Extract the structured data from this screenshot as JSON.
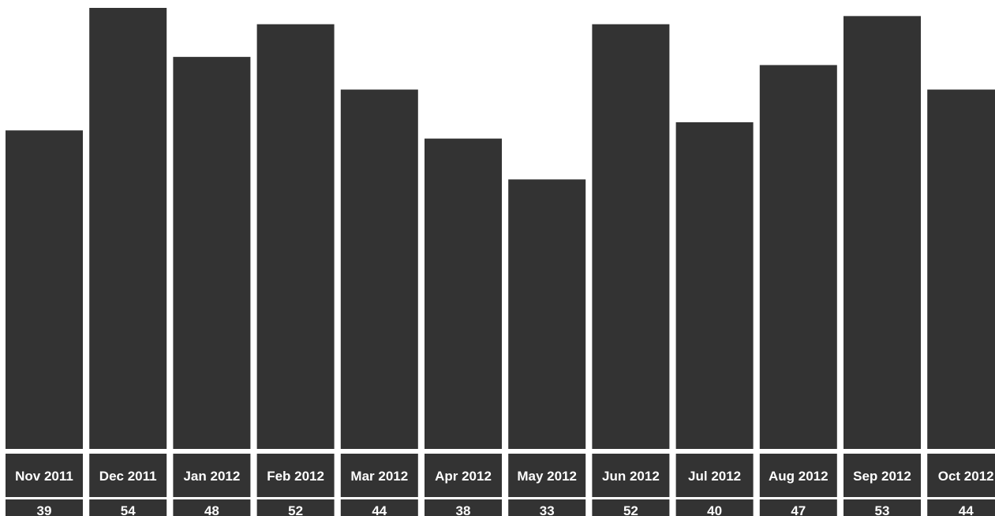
{
  "chart_data": {
    "type": "bar",
    "title": "",
    "xlabel": "",
    "ylabel": "",
    "categories": [
      "Nov 2011",
      "Dec 2011",
      "Jan 2012",
      "Feb 2012",
      "Mar 2012",
      "Apr 2012",
      "May 2012",
      "Jun 2012",
      "Jul 2012",
      "Aug 2012",
      "Sep 2012",
      "Oct 2012"
    ],
    "values": [
      39,
      54,
      48,
      52,
      44,
      38,
      33,
      52,
      40,
      47,
      53,
      44
    ],
    "value_labels": [
      "39",
      "54",
      "48",
      "52",
      "44",
      "38",
      "33",
      "52",
      "40",
      "47",
      "53",
      "44"
    ],
    "ylim": [
      0,
      54
    ],
    "grid": false,
    "legend": "none",
    "colors": {
      "bar": "#333333",
      "label_background": "#333333",
      "label_text": "#ffffff",
      "background": "#ffffff"
    }
  }
}
